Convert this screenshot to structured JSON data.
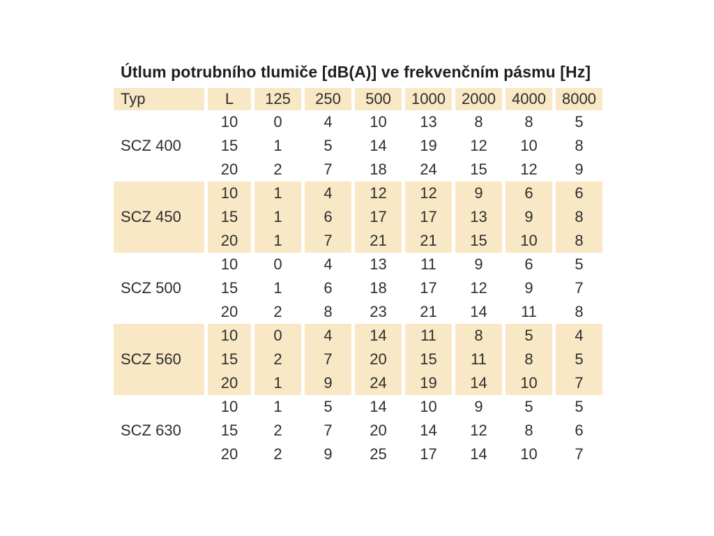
{
  "title": "Útlum potrubního tlumiče [dB(A)] ve frekvenčním pásmu [Hz]",
  "colors": {
    "band": "#F9E8C5",
    "text": "#2D2D2D",
    "background": "#FFFFFF"
  },
  "table": {
    "columns": [
      "Typ",
      "L",
      "125",
      "250",
      "500",
      "1000",
      "2000",
      "4000",
      "8000"
    ],
    "groups": [
      {
        "type": "SCZ 400",
        "shaded": false,
        "rows": [
          {
            "L": "10",
            "values": [
              "0",
              "4",
              "10",
              "13",
              "8",
              "8",
              "5"
            ]
          },
          {
            "L": "15",
            "values": [
              "1",
              "5",
              "14",
              "19",
              "12",
              "10",
              "8"
            ]
          },
          {
            "L": "20",
            "values": [
              "2",
              "7",
              "18",
              "24",
              "15",
              "12",
              "9"
            ]
          }
        ]
      },
      {
        "type": "SCZ 450",
        "shaded": true,
        "rows": [
          {
            "L": "10",
            "values": [
              "1",
              "4",
              "12",
              "12",
              "9",
              "6",
              "6"
            ]
          },
          {
            "L": "15",
            "values": [
              "1",
              "6",
              "17",
              "17",
              "13",
              "9",
              "8"
            ]
          },
          {
            "L": "20",
            "values": [
              "1",
              "7",
              "21",
              "21",
              "15",
              "10",
              "8"
            ]
          }
        ]
      },
      {
        "type": "SCZ 500",
        "shaded": false,
        "rows": [
          {
            "L": "10",
            "values": [
              "0",
              "4",
              "13",
              "11",
              "9",
              "6",
              "5"
            ]
          },
          {
            "L": "15",
            "values": [
              "1",
              "6",
              "18",
              "17",
              "12",
              "9",
              "7"
            ]
          },
          {
            "L": "20",
            "values": [
              "2",
              "8",
              "23",
              "21",
              "14",
              "11",
              "8"
            ]
          }
        ]
      },
      {
        "type": "SCZ 560",
        "shaded": true,
        "rows": [
          {
            "L": "10",
            "values": [
              "0",
              "4",
              "14",
              "11",
              "8",
              "5",
              "4"
            ]
          },
          {
            "L": "15",
            "values": [
              "2",
              "7",
              "20",
              "15",
              "11",
              "8",
              "5"
            ]
          },
          {
            "L": "20",
            "values": [
              "1",
              "9",
              "24",
              "19",
              "14",
              "10",
              "7"
            ]
          }
        ]
      },
      {
        "type": "SCZ 630",
        "shaded": false,
        "rows": [
          {
            "L": "10",
            "values": [
              "1",
              "5",
              "14",
              "10",
              "9",
              "5",
              "5"
            ]
          },
          {
            "L": "15",
            "values": [
              "2",
              "7",
              "20",
              "14",
              "12",
              "8",
              "6"
            ]
          },
          {
            "L": "20",
            "values": [
              "2",
              "9",
              "25",
              "17",
              "14",
              "10",
              "7"
            ]
          }
        ]
      }
    ]
  },
  "chart_data": {
    "type": "table",
    "title": "Útlum potrubního tlumiče [dB(A)] ve frekvenčním pásmu [Hz]",
    "columns": [
      "Typ",
      "L",
      "125",
      "250",
      "500",
      "1000",
      "2000",
      "4000",
      "8000"
    ],
    "rows": [
      [
        "SCZ 400",
        10,
        0,
        4,
        10,
        13,
        8,
        8,
        5
      ],
      [
        "SCZ 400",
        15,
        1,
        5,
        14,
        19,
        12,
        10,
        8
      ],
      [
        "SCZ 400",
        20,
        2,
        7,
        18,
        24,
        15,
        12,
        9
      ],
      [
        "SCZ 450",
        10,
        1,
        4,
        12,
        12,
        9,
        6,
        6
      ],
      [
        "SCZ 450",
        15,
        1,
        6,
        17,
        17,
        13,
        9,
        8
      ],
      [
        "SCZ 450",
        20,
        1,
        7,
        21,
        21,
        15,
        10,
        8
      ],
      [
        "SCZ 500",
        10,
        0,
        4,
        13,
        11,
        9,
        6,
        5
      ],
      [
        "SCZ 500",
        15,
        1,
        6,
        18,
        17,
        12,
        9,
        7
      ],
      [
        "SCZ 500",
        20,
        2,
        8,
        23,
        21,
        14,
        11,
        8
      ],
      [
        "SCZ 560",
        10,
        0,
        4,
        14,
        11,
        8,
        5,
        4
      ],
      [
        "SCZ 560",
        15,
        2,
        7,
        20,
        15,
        11,
        8,
        5
      ],
      [
        "SCZ 560",
        20,
        1,
        9,
        24,
        19,
        14,
        10,
        7
      ],
      [
        "SCZ 630",
        10,
        1,
        5,
        14,
        10,
        9,
        5,
        5
      ],
      [
        "SCZ 630",
        15,
        2,
        7,
        20,
        14,
        12,
        8,
        6
      ],
      [
        "SCZ 630",
        20,
        2,
        9,
        25,
        17,
        14,
        10,
        7
      ]
    ]
  }
}
